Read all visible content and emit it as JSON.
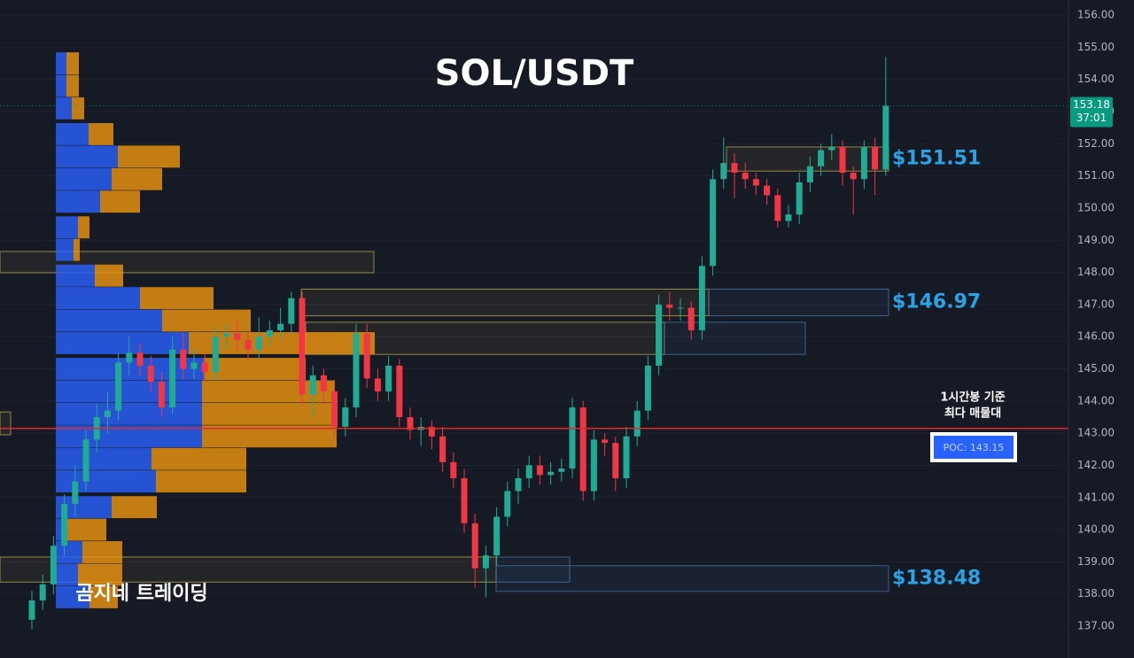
{
  "chart_data": {
    "type": "candlestick",
    "title": "SOL/USDT",
    "watermark": "곰지네 트레이딩",
    "up_color": "#22ab94",
    "down_color": "#f23645",
    "ylim": [
      136.01,
      156.47
    ],
    "yticks": [
      {
        "value": 137,
        "label": "137.00"
      },
      {
        "value": 138,
        "label": "138.00"
      },
      {
        "value": 139,
        "label": "139.00"
      },
      {
        "value": 140,
        "label": "140.00"
      },
      {
        "value": 141,
        "label": "141.00"
      },
      {
        "value": 142,
        "label": "142.00"
      },
      {
        "value": 143,
        "label": "143.00"
      },
      {
        "value": 144,
        "label": "144.00"
      },
      {
        "value": 145,
        "label": "145.00"
      },
      {
        "value": 146,
        "label": "146.00"
      },
      {
        "value": 147,
        "label": "147.00"
      },
      {
        "value": 148,
        "label": "148.00"
      },
      {
        "value": 149,
        "label": "149.00"
      },
      {
        "value": 150,
        "label": "150.00"
      },
      {
        "value": 151,
        "label": "151.00"
      },
      {
        "value": 152,
        "label": "152.00"
      },
      {
        "value": 153,
        "label": "153.00"
      },
      {
        "value": 154,
        "label": "154.00"
      },
      {
        "value": 155,
        "label": "155.00"
      },
      {
        "value": 156,
        "label": "156.00"
      }
    ],
    "grid": true,
    "ohlc": [
      [
        137.2,
        138.1,
        136.9,
        137.8
      ],
      [
        137.8,
        138.6,
        137.5,
        138.3
      ],
      [
        138.3,
        139.8,
        138.0,
        139.5
      ],
      [
        139.5,
        141.1,
        139.2,
        140.8
      ],
      [
        140.8,
        142.0,
        140.4,
        141.5
      ],
      [
        141.5,
        143.1,
        141.2,
        142.8
      ],
      [
        142.8,
        143.9,
        142.4,
        143.5
      ],
      [
        143.5,
        144.3,
        143.0,
        143.7
      ],
      [
        143.7,
        145.5,
        143.4,
        145.2
      ],
      [
        145.2,
        146.0,
        144.8,
        145.5
      ],
      [
        145.5,
        145.8,
        144.8,
        145.1
      ],
      [
        145.1,
        145.4,
        144.3,
        144.6
      ],
      [
        144.6,
        144.9,
        143.5,
        143.8
      ],
      [
        143.8,
        146.0,
        143.6,
        145.6
      ],
      [
        145.6,
        146.1,
        144.7,
        145.0
      ],
      [
        145.0,
        145.6,
        144.7,
        145.2
      ],
      [
        145.2,
        145.5,
        144.6,
        144.9
      ],
      [
        144.9,
        146.3,
        144.6,
        146.0
      ],
      [
        146.0,
        146.4,
        145.6,
        146.1
      ],
      [
        146.1,
        146.5,
        145.6,
        145.9
      ],
      [
        145.9,
        146.2,
        145.3,
        145.6
      ],
      [
        145.6,
        146.6,
        145.3,
        146.0
      ],
      [
        146.0,
        146.5,
        145.7,
        146.2
      ],
      [
        146.2,
        146.9,
        145.9,
        146.4
      ],
      [
        146.4,
        147.4,
        146.1,
        147.2
      ],
      [
        147.2,
        147.4,
        143.9,
        144.2
      ],
      [
        144.2,
        145.1,
        143.5,
        144.8
      ],
      [
        144.8,
        145.0,
        143.9,
        144.3
      ],
      [
        144.3,
        144.6,
        142.9,
        143.2
      ],
      [
        143.2,
        144.1,
        142.9,
        143.8
      ],
      [
        143.8,
        146.4,
        143.5,
        146.1
      ],
      [
        146.1,
        146.4,
        144.4,
        144.7
      ],
      [
        144.7,
        145.0,
        144.0,
        144.3
      ],
      [
        144.3,
        145.4,
        144.0,
        145.1
      ],
      [
        145.1,
        145.3,
        143.2,
        143.5
      ],
      [
        143.5,
        143.8,
        142.8,
        143.1
      ],
      [
        143.1,
        143.5,
        142.6,
        143.2
      ],
      [
        143.2,
        143.4,
        142.5,
        142.9
      ],
      [
        142.9,
        143.2,
        141.8,
        142.1
      ],
      [
        142.1,
        142.4,
        141.3,
        141.6
      ],
      [
        141.6,
        141.9,
        139.9,
        140.2
      ],
      [
        140.2,
        140.5,
        138.2,
        138.8
      ],
      [
        138.8,
        139.5,
        137.9,
        139.2
      ],
      [
        139.2,
        140.7,
        138.9,
        140.4
      ],
      [
        140.4,
        141.5,
        140.1,
        141.2
      ],
      [
        141.2,
        141.9,
        140.8,
        141.6
      ],
      [
        141.6,
        142.3,
        141.3,
        142.0
      ],
      [
        142.0,
        142.3,
        141.4,
        141.7
      ],
      [
        141.7,
        142.1,
        141.4,
        141.8
      ],
      [
        141.8,
        142.2,
        141.5,
        141.9
      ],
      [
        141.9,
        144.1,
        141.6,
        143.8
      ],
      [
        143.8,
        144.0,
        140.9,
        141.2
      ],
      [
        141.2,
        143.1,
        140.9,
        142.8
      ],
      [
        142.8,
        143.0,
        142.3,
        142.7
      ],
      [
        142.7,
        142.9,
        141.2,
        141.6
      ],
      [
        141.6,
        143.2,
        141.3,
        142.9
      ],
      [
        142.9,
        144.0,
        142.6,
        143.7
      ],
      [
        143.7,
        145.4,
        143.4,
        145.1
      ],
      [
        145.1,
        147.3,
        144.8,
        147.0
      ],
      [
        147.0,
        147.4,
        146.5,
        146.9
      ],
      [
        146.9,
        147.2,
        146.5,
        146.9
      ],
      [
        146.9,
        147.1,
        145.9,
        146.2
      ],
      [
        146.2,
        148.5,
        145.9,
        148.2
      ],
      [
        148.2,
        151.2,
        147.9,
        150.9
      ],
      [
        150.9,
        152.2,
        150.6,
        151.4
      ],
      [
        151.4,
        151.7,
        150.3,
        151.1
      ],
      [
        151.1,
        151.4,
        150.6,
        150.9
      ],
      [
        150.9,
        151.1,
        150.4,
        150.7
      ],
      [
        150.7,
        150.9,
        150.1,
        150.4
      ],
      [
        150.4,
        150.6,
        149.4,
        149.6
      ],
      [
        149.6,
        150.1,
        149.4,
        149.8
      ],
      [
        149.8,
        151.1,
        149.5,
        150.8
      ],
      [
        150.8,
        151.6,
        150.5,
        151.3
      ],
      [
        151.3,
        152.0,
        151.0,
        151.8
      ],
      [
        151.8,
        152.3,
        151.5,
        151.9
      ],
      [
        151.9,
        152.1,
        150.7,
        151.1
      ],
      [
        151.1,
        151.3,
        149.8,
        150.9
      ],
      [
        150.9,
        152.1,
        150.6,
        151.9
      ],
      [
        151.9,
        152.2,
        150.4,
        151.2
      ],
      [
        151.2,
        154.7,
        151.0,
        153.18
      ]
    ],
    "volume_profile": {
      "buy_color": "#2962ff",
      "sell_color": "#f0960f",
      "price": [
        154.5,
        153.8,
        153.1,
        152.3,
        151.6,
        150.9,
        150.2,
        149.4,
        148.7,
        147.9,
        147.2,
        146.5,
        145.8,
        145.0,
        144.3,
        143.6,
        142.9,
        142.2,
        141.5,
        140.7,
        140.0,
        139.3,
        138.6,
        137.9
      ],
      "buy": [
        12,
        12,
        18,
        37,
        70,
        63,
        50,
        25,
        20,
        44,
        95,
        120,
        150,
        167,
        165,
        165,
        165,
        108,
        113,
        63,
        12,
        30,
        25,
        38
      ],
      "sell": [
        14,
        14,
        14,
        28,
        70,
        57,
        45,
        13,
        7,
        32,
        83,
        100,
        210,
        115,
        150,
        150,
        152,
        107,
        102,
        51,
        45,
        45,
        50,
        32
      ]
    },
    "zones": [
      {
        "top": 148.65,
        "bottom": 147.99,
        "color": "#c9b458"
      },
      {
        "top": 147.48,
        "bottom": 146.65,
        "color": "#c9b458"
      },
      {
        "top": 146.45,
        "bottom": 145.45,
        "color": "#c9b458"
      },
      {
        "top": 151.9,
        "bottom": 151.15,
        "color": "#c9b458",
        "label": "$151.51"
      },
      {
        "top": 147.48,
        "bottom": 146.65,
        "color": "#4a7fb5",
        "label": "$146.97"
      },
      {
        "top": 146.45,
        "bottom": 145.45,
        "color": "#4a7fb5"
      },
      {
        "top": 139.15,
        "bottom": 138.37,
        "color": "#c9b458"
      },
      {
        "top": 139.15,
        "bottom": 138.37,
        "color": "#4a7fb5"
      },
      {
        "top": 138.88,
        "bottom": 138.08,
        "color": "#4a7fb5",
        "label": "$138.48"
      },
      {
        "top": 143.66,
        "bottom": 142.95,
        "color": "#c9b458"
      }
    ],
    "poc": {
      "value": 143.15,
      "label": "POC: 143.15",
      "color": "#e0282e"
    },
    "annotation": [
      "1시간봉 기준",
      "최다 매물대"
    ],
    "last_price": 153.18,
    "countdown": "37:01",
    "last_color": "#089981"
  }
}
